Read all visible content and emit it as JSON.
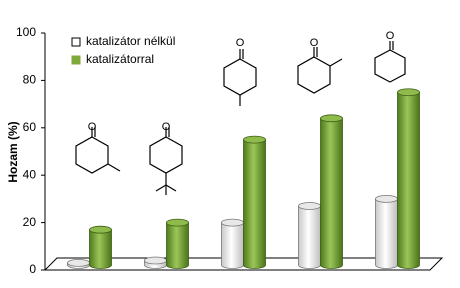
{
  "chart_data": {
    "type": "bar3d",
    "y_label": "Hozam (%)",
    "categories": [
      null,
      null,
      null,
      null,
      null
    ],
    "series": [
      {
        "name": "katalizátor nélkül",
        "color": "#ffffff",
        "values": [
          3,
          4,
          20,
          27,
          30
        ]
      },
      {
        "name": "katalizátorral",
        "color": "#7faa3a",
        "values": [
          17,
          20,
          55,
          64,
          75
        ]
      }
    ],
    "ylim": [
      0,
      100
    ],
    "yticks": [
      0,
      20,
      40,
      60,
      80,
      100
    ]
  }
}
